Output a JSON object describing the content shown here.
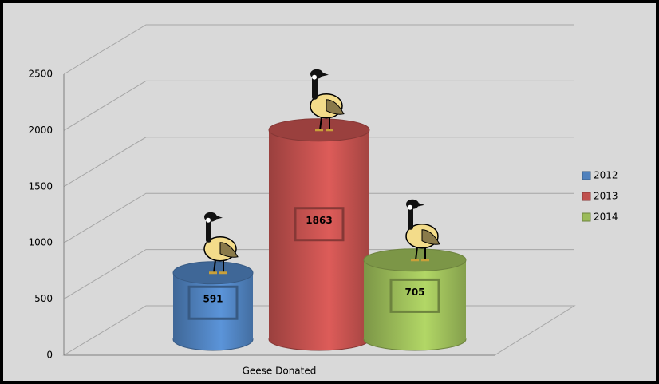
{
  "chart_data": {
    "type": "bar",
    "categories": [
      "Geese Donated"
    ],
    "series": [
      {
        "name": "2012",
        "color": "#4f81bd",
        "values": [
          591
        ]
      },
      {
        "name": "2013",
        "color": "#c0504d",
        "values": [
          1863
        ]
      },
      {
        "name": "2014",
        "color": "#9bbb59",
        "values": [
          705
        ]
      }
    ],
    "ylim": [
      0,
      2500
    ],
    "yticks": [
      0,
      500,
      1000,
      1500,
      2000,
      2500
    ],
    "grid": true,
    "legend": "right"
  }
}
